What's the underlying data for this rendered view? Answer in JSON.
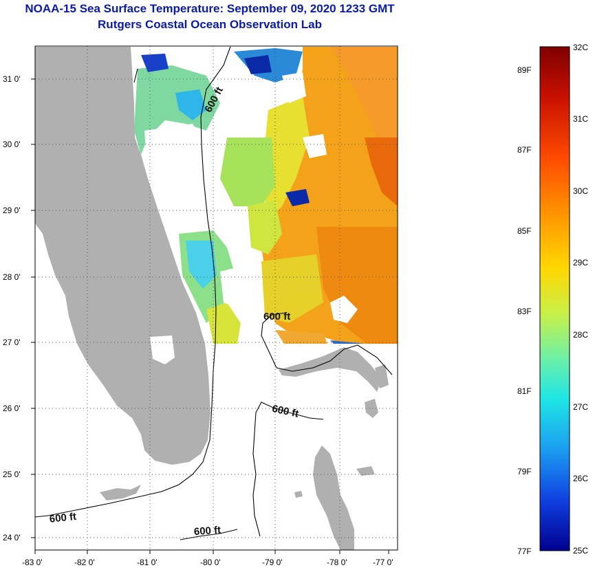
{
  "title": {
    "line1": "NOAA-15 Sea Surface Temperature:  September 09, 2020 1233 GMT",
    "line2": "Rutgers Coastal Ocean Observation Lab"
  },
  "axes": {
    "lon_labels": [
      "-83 0'",
      "-82 0'",
      "-81 0'",
      "-80 0'",
      "-79 0'",
      "-78 0'",
      "-77 0'"
    ],
    "lat_labels": [
      "31 0'",
      "30 0'",
      "29 0'",
      "28 0'",
      "27 0'",
      "26 0'",
      "25 0'",
      "24 0'"
    ]
  },
  "contours": {
    "label_600ft": "600 ft",
    "label_partial": "600 ft"
  },
  "colorbar": {
    "celsius": [
      "32C",
      "31C",
      "30C",
      "29C",
      "28C",
      "27C",
      "26C",
      "25C"
    ],
    "fahrenheit": [
      "89F",
      "87F",
      "85F",
      "83F",
      "81F",
      "79F",
      "77F"
    ]
  },
  "colors": {
    "title": "#0a1aa8",
    "land": "#b0b0b0",
    "scale": [
      "#7f0000",
      "#c81000",
      "#ff4a00",
      "#ff9a00",
      "#ffd800",
      "#c8f048",
      "#6cf0a8",
      "#1ee6e6",
      "#1c9cf0",
      "#1040e0",
      "#00008f"
    ]
  }
}
